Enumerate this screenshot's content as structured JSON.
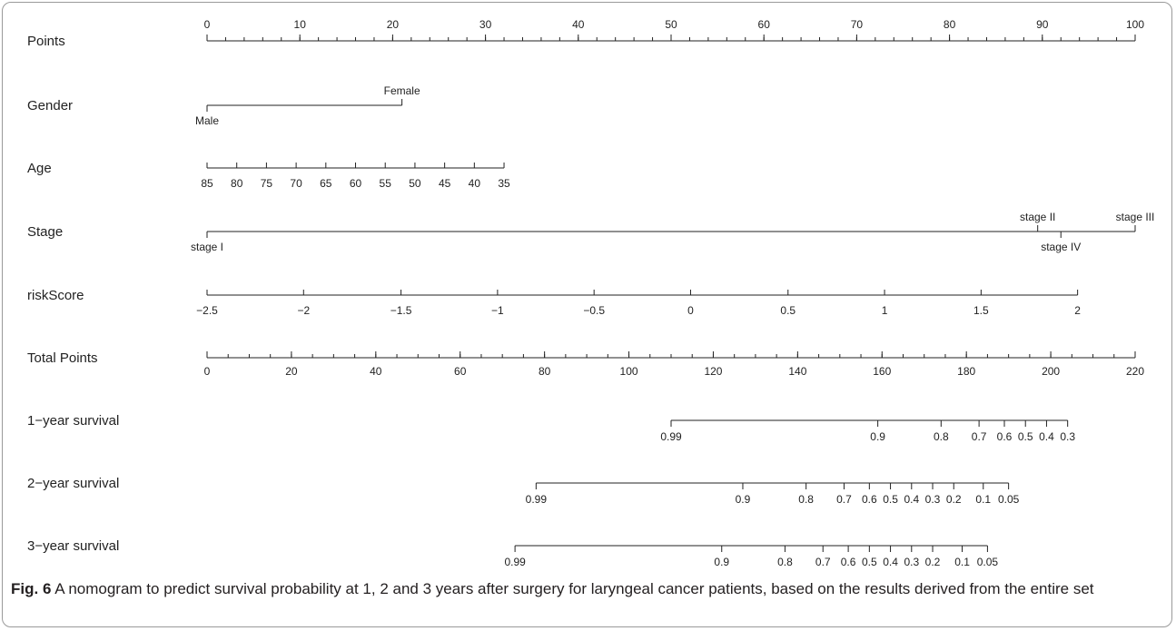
{
  "chart_data": {
    "type": "nomogram",
    "title": "",
    "rows": [
      {
        "label": "Points",
        "kind": "points",
        "range": [
          0,
          100
        ],
        "labels": [
          {
            "text": "0",
            "value": 0
          },
          {
            "text": "10",
            "value": 10
          },
          {
            "text": "20",
            "value": 20
          },
          {
            "text": "30",
            "value": 30
          },
          {
            "text": "40",
            "value": 40
          },
          {
            "text": "50",
            "value": 50
          },
          {
            "text": "60",
            "value": 60
          },
          {
            "text": "70",
            "value": 70
          },
          {
            "text": "80",
            "value": 80
          },
          {
            "text": "90",
            "value": 90
          },
          {
            "text": "100",
            "value": 100
          }
        ],
        "minor_step": 2
      },
      {
        "label": "Gender",
        "kind": "categorical",
        "levels": [
          {
            "text": "Male",
            "points": 0,
            "side": "below"
          },
          {
            "text": "Female",
            "points": 21,
            "side": "above"
          }
        ]
      },
      {
        "label": "Age",
        "kind": "continuous",
        "labels": [
          {
            "text": "85",
            "points": 0
          },
          {
            "text": "80",
            "points": 3.2
          },
          {
            "text": "75",
            "points": 6.4
          },
          {
            "text": "70",
            "points": 9.6
          },
          {
            "text": "65",
            "points": 12.8
          },
          {
            "text": "60",
            "points": 16
          },
          {
            "text": "55",
            "points": 19.2
          },
          {
            "text": "50",
            "points": 22.4
          },
          {
            "text": "45",
            "points": 25.6
          },
          {
            "text": "40",
            "points": 28.8
          },
          {
            "text": "35",
            "points": 32
          }
        ]
      },
      {
        "label": "Stage",
        "kind": "categorical",
        "levels": [
          {
            "text": "stage I",
            "points": 0,
            "side": "below"
          },
          {
            "text": "stage II",
            "points": 89.5,
            "side": "above"
          },
          {
            "text": "stage IV",
            "points": 92,
            "side": "below"
          },
          {
            "text": "stage III",
            "points": 100,
            "side": "above"
          }
        ]
      },
      {
        "label": "riskScore",
        "kind": "continuous",
        "labels": [
          {
            "text": "−2.5",
            "points": 0
          },
          {
            "text": "−2",
            "points": 10.4
          },
          {
            "text": "−1.5",
            "points": 20.9
          },
          {
            "text": "−1",
            "points": 31.3
          },
          {
            "text": "−0.5",
            "points": 41.7
          },
          {
            "text": "0",
            "points": 52.1
          },
          {
            "text": "0.5",
            "points": 62.6
          },
          {
            "text": "1",
            "points": 73
          },
          {
            "text": "1.5",
            "points": 83.4
          },
          {
            "text": "2",
            "points": 93.8
          }
        ]
      },
      {
        "label": "Total Points",
        "kind": "total",
        "range": [
          0,
          220
        ],
        "labels": [
          {
            "text": "0",
            "value": 0
          },
          {
            "text": "20",
            "value": 20
          },
          {
            "text": "40",
            "value": 40
          },
          {
            "text": "60",
            "value": 60
          },
          {
            "text": "80",
            "value": 80
          },
          {
            "text": "100",
            "value": 100
          },
          {
            "text": "120",
            "value": 120
          },
          {
            "text": "140",
            "value": 140
          },
          {
            "text": "160",
            "value": 160
          },
          {
            "text": "180",
            "value": 180
          },
          {
            "text": "200",
            "value": 200
          },
          {
            "text": "220",
            "value": 220
          }
        ],
        "minor_step": 5
      },
      {
        "label": "1−year survival",
        "kind": "probability",
        "labels": [
          {
            "text": "0.99",
            "total_points": 110
          },
          {
            "text": "0.9",
            "total_points": 159
          },
          {
            "text": "0.8",
            "total_points": 174
          },
          {
            "text": "0.7",
            "total_points": 183
          },
          {
            "text": "0.6",
            "total_points": 189
          },
          {
            "text": "0.5",
            "total_points": 194
          },
          {
            "text": "0.4",
            "total_points": 199
          },
          {
            "text": "0.3",
            "total_points": 204
          }
        ]
      },
      {
        "label": "2−year survival",
        "kind": "probability",
        "labels": [
          {
            "text": "0.99",
            "total_points": 78
          },
          {
            "text": "0.9",
            "total_points": 127
          },
          {
            "text": "0.8",
            "total_points": 142
          },
          {
            "text": "0.7",
            "total_points": 151
          },
          {
            "text": "0.6",
            "total_points": 157
          },
          {
            "text": "0.5",
            "total_points": 162
          },
          {
            "text": "0.4",
            "total_points": 167
          },
          {
            "text": "0.3",
            "total_points": 172
          },
          {
            "text": "0.2",
            "total_points": 177
          },
          {
            "text": "0.1",
            "total_points": 184
          },
          {
            "text": "0.05",
            "total_points": 190
          }
        ]
      },
      {
        "label": "3−year survival",
        "kind": "probability",
        "labels": [
          {
            "text": "0.99",
            "total_points": 73
          },
          {
            "text": "0.9",
            "total_points": 122
          },
          {
            "text": "0.8",
            "total_points": 137
          },
          {
            "text": "0.7",
            "total_points": 146
          },
          {
            "text": "0.6",
            "total_points": 152
          },
          {
            "text": "0.5",
            "total_points": 157
          },
          {
            "text": "0.4",
            "total_points": 162
          },
          {
            "text": "0.3",
            "total_points": 167
          },
          {
            "text": "0.2",
            "total_points": 172
          },
          {
            "text": "0.1",
            "total_points": 179
          },
          {
            "text": "0.05",
            "total_points": 185
          }
        ]
      }
    ]
  },
  "caption": {
    "label": "Fig. 6",
    "text": "A nomogram to predict survival probability at 1, 2 and 3 years after surgery for laryngeal cancer patients, based on the results derived from the entire set"
  }
}
